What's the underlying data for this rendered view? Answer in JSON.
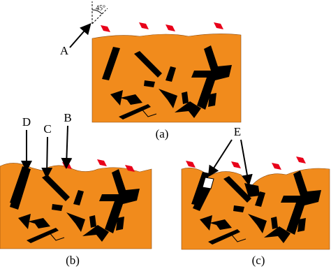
{
  "labels": {
    "angle": "45°",
    "a": "A",
    "b": "B",
    "c": "C",
    "d": "D",
    "e": "E"
  },
  "captions": [
    "(a)",
    "(b)",
    "(c)"
  ]
}
